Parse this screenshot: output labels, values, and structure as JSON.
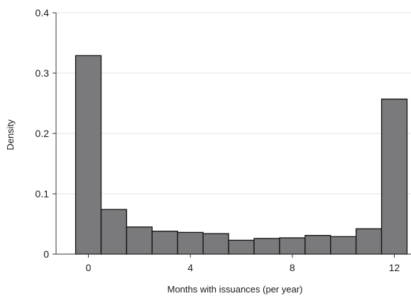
{
  "chart_data": {
    "type": "bar",
    "subtype": "histogram",
    "xlabel": "Months with issuances (per year)",
    "ylabel": "Density",
    "x_ticks": [
      "0",
      "4",
      "8",
      "12"
    ],
    "y_ticks": [
      "0",
      "0.1",
      "0.2",
      "0.3",
      "0.4"
    ],
    "xlim": [
      -0.5,
      12.5
    ],
    "ylim": [
      0,
      0.4
    ],
    "grid": "horizontal",
    "legend": "none",
    "bins": [
      0,
      1,
      2,
      3,
      4,
      5,
      6,
      7,
      8,
      9,
      10,
      11,
      12
    ],
    "values": [
      0.329,
      0.074,
      0.045,
      0.038,
      0.036,
      0.034,
      0.023,
      0.026,
      0.027,
      0.031,
      0.029,
      0.042,
      0.257
    ],
    "colors": {
      "bar_fill": "#7a7a7c",
      "bar_edge": "#111111",
      "grid": "#e3e3e3",
      "axis": "#333333"
    }
  }
}
